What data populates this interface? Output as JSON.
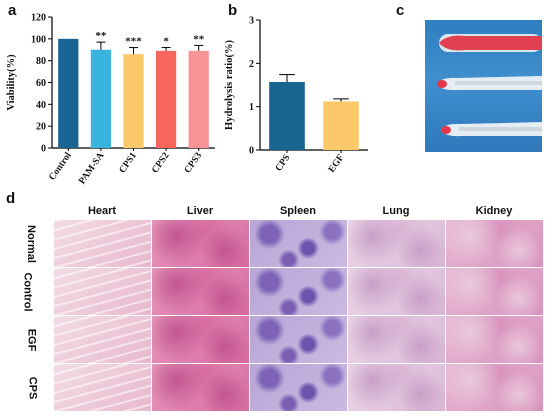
{
  "panels": {
    "a": "a",
    "b": "b",
    "c": "c",
    "d": "d"
  },
  "chart_data": [
    {
      "type": "bar",
      "panel": "a",
      "categories": [
        "Control",
        "PAM-SA",
        "CPS1",
        "CPS2",
        "CPS3"
      ],
      "values": [
        100,
        90,
        86,
        89,
        89
      ],
      "errors": [
        0,
        7,
        6,
        3,
        5
      ],
      "significance": [
        "",
        "**",
        "***",
        "*",
        "**"
      ],
      "colors": [
        "#1a6491",
        "#3ab3de",
        "#fbc86a",
        "#f7665c",
        "#f89396"
      ],
      "ylabel": "Viability(%)",
      "ylim": [
        0,
        120
      ],
      "yticks": [
        0,
        20,
        40,
        60,
        80,
        100,
        120
      ]
    },
    {
      "type": "bar",
      "panel": "b",
      "categories": [
        "CPS",
        "EGF"
      ],
      "values": [
        1.57,
        1.12
      ],
      "errors": [
        0.17,
        0.06
      ],
      "colors": [
        "#1a6491",
        "#fbc86a"
      ],
      "ylabel": "Hydrolysis ratio(%)",
      "ylim": [
        0,
        3
      ],
      "yticks": [
        0,
        1,
        2,
        3
      ]
    }
  ],
  "histology": {
    "columns": [
      "Heart",
      "Liver",
      "Spleen",
      "Lung",
      "Kidney"
    ],
    "rows": [
      "Normal",
      "Control",
      "EGF",
      "CPS"
    ]
  }
}
